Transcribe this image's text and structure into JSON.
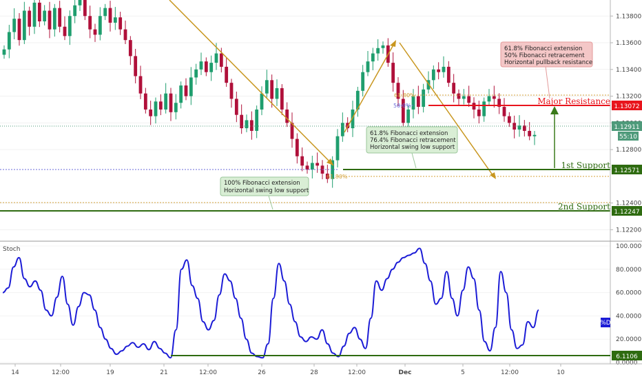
{
  "chart_data": {
    "type": "line",
    "instrument_chart": {
      "type": "candlestick",
      "price_axis": {
        "ticks": [
          "1.13800",
          "1.13600",
          "1.13400",
          "1.13200",
          "1.13000",
          "1.12800",
          "1.12400",
          "1.12200"
        ],
        "ylim": [
          1.1214,
          1.1392
        ]
      },
      "time_axis": {
        "ticks": [
          "14",
          "12:00",
          "19",
          "21",
          "12:00",
          "26",
          "28",
          "12:00",
          "Dec",
          "5",
          "12:00",
          "10"
        ]
      },
      "close_series": [
        1.1355,
        1.1368,
        1.1378,
        1.1362,
        1.1384,
        1.1372,
        1.139,
        1.1376,
        1.1384,
        1.137,
        1.1386,
        1.1372,
        1.1365,
        1.138,
        1.1388,
        1.1394,
        1.138,
        1.137,
        1.1366,
        1.138,
        1.1386,
        1.1375,
        1.1379,
        1.137,
        1.1362,
        1.135,
        1.1335,
        1.1322,
        1.131,
        1.1305,
        1.1316,
        1.131,
        1.1322,
        1.1308,
        1.1315,
        1.1328,
        1.132,
        1.1334,
        1.134,
        1.1346,
        1.1338,
        1.1345,
        1.1352,
        1.1342,
        1.133,
        1.1318,
        1.1306,
        1.1296,
        1.1302,
        1.1294,
        1.131,
        1.1322,
        1.1332,
        1.1318,
        1.1326,
        1.131,
        1.13,
        1.1288,
        1.1275,
        1.1268,
        1.1265,
        1.127,
        1.1268,
        1.1262,
        1.1258,
        1.1272,
        1.129,
        1.13,
        1.1296,
        1.131,
        1.1324,
        1.1338,
        1.1346,
        1.1352,
        1.1356,
        1.1358,
        1.1345,
        1.133,
        1.1318,
        1.13,
        1.131,
        1.132,
        1.1312,
        1.1325,
        1.1332,
        1.134,
        1.1338,
        1.1342,
        1.133,
        1.1322,
        1.1318,
        1.132,
        1.1315,
        1.131,
        1.1305,
        1.1316,
        1.132,
        1.1318,
        1.1312,
        1.1305,
        1.13,
        1.1295,
        1.1298,
        1.1294,
        1.129,
        1.1291
      ]
    },
    "levels": [
      {
        "name": "Major Resistance",
        "value": "1.13072",
        "color": "#e8141c"
      },
      {
        "name": "1st Support",
        "value": "1.12571",
        "color": "#2e6b10"
      },
      {
        "name": "2nd Support",
        "value": "1.12247",
        "color": "#2e6b10"
      }
    ],
    "last_price": {
      "value": "1.12911",
      "countdown": "55:10",
      "color": "#4e9a7a"
    },
    "fibonacci_labels": [
      "61.80%",
      "50.0%",
      "61.80%"
    ],
    "annotations": [
      {
        "lines": [
          "61.8% Fibonacci extension",
          "50% Fibonacci retracement",
          "Horizontal pullback resistance"
        ],
        "style": "red"
      },
      {
        "lines": [
          "61.8% Fibonacci extension",
          "76.4% Fibonacci retracement",
          "Horizontal swing low support"
        ],
        "style": "green"
      },
      {
        "lines": [
          "100% Fibonacci extension",
          "Horizontal swing low support"
        ],
        "style": "green"
      }
    ],
    "indicator": {
      "title": "Stoch",
      "ticks": [
        "100.0000",
        "80.0000",
        "60.0000",
        "40.0000",
        "20.0000",
        "0.0000"
      ],
      "ylim": [
        0,
        100
      ],
      "series_tag": "%D",
      "support_value": "6.1106",
      "values": [
        60,
        64,
        82,
        90,
        72,
        65,
        70,
        62,
        45,
        40,
        56,
        74,
        50,
        32,
        48,
        60,
        58,
        45,
        30,
        20,
        12,
        7,
        10,
        14,
        17,
        13,
        16,
        11,
        18,
        12,
        8,
        4,
        28,
        80,
        88,
        66,
        55,
        35,
        28,
        36,
        58,
        76,
        70,
        55,
        38,
        20,
        8,
        5,
        4,
        16,
        55,
        85,
        70,
        50,
        35,
        22,
        18,
        22,
        20,
        28,
        16,
        8,
        5,
        14,
        25,
        30,
        20,
        12,
        38,
        70,
        62,
        72,
        80,
        86,
        90,
        92,
        94,
        98,
        85,
        70,
        50,
        55,
        78,
        55,
        40,
        62,
        82,
        72,
        45,
        18,
        10,
        30,
        78,
        60,
        28,
        12,
        15,
        35,
        30,
        45
      ]
    }
  }
}
